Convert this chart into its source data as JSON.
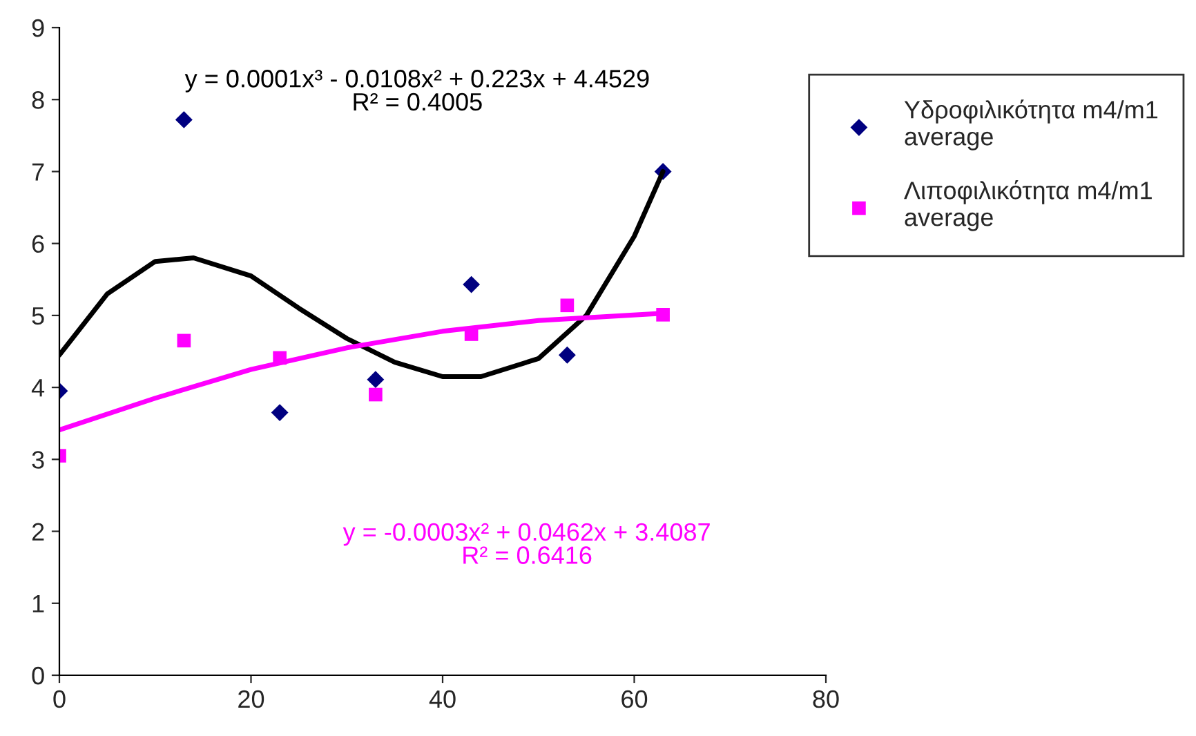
{
  "chart_data": {
    "type": "scatter",
    "xlim": [
      0,
      80
    ],
    "ylim": [
      0,
      9
    ],
    "xticks": [
      0,
      20,
      40,
      60,
      80
    ],
    "yticks": [
      0,
      1,
      2,
      3,
      4,
      5,
      6,
      7,
      8,
      9
    ],
    "grid": false,
    "legend": "top right",
    "series": [
      {
        "name": "Υδροφιλικότητα m4/m1 average",
        "marker": "diamond",
        "color": "#000080",
        "x": [
          0,
          13,
          23,
          33,
          43,
          53,
          63
        ],
        "values": [
          3.95,
          7.72,
          3.65,
          4.11,
          5.43,
          4.45,
          7.0
        ]
      },
      {
        "name": "Λιποφιλικότητα m4/m1 average",
        "marker": "square",
        "color": "#ff00ff",
        "x": [
          0,
          13,
          23,
          33,
          43,
          53,
          63
        ],
        "values": [
          3.05,
          4.65,
          4.41,
          3.9,
          4.74,
          5.14,
          5.01
        ]
      },
      {
        "type": "line",
        "marker": "none",
        "color": "#000000",
        "x": [
          0,
          5,
          10,
          14,
          20,
          25,
          30,
          35,
          40,
          44,
          50,
          55,
          60,
          63
        ],
        "values": [
          4.45,
          5.3,
          5.75,
          5.8,
          5.55,
          5.1,
          4.68,
          4.35,
          4.15,
          4.15,
          4.4,
          5.0,
          6.1,
          7.0
        ]
      },
      {
        "type": "line",
        "marker": "none",
        "color": "#ff00ff",
        "x": [
          0,
          10,
          20,
          30,
          40,
          50,
          63
        ],
        "values": [
          3.41,
          3.85,
          4.25,
          4.55,
          4.78,
          4.93,
          5.03
        ]
      }
    ],
    "annotations": [
      "y = 0.0001x³ - 0.0108x² + 0.223x + 4.4529\nR² = 0.4005",
      "y = -0.0003x² + 0.0462x + 3.4087\nR² = 0.6416"
    ]
  }
}
